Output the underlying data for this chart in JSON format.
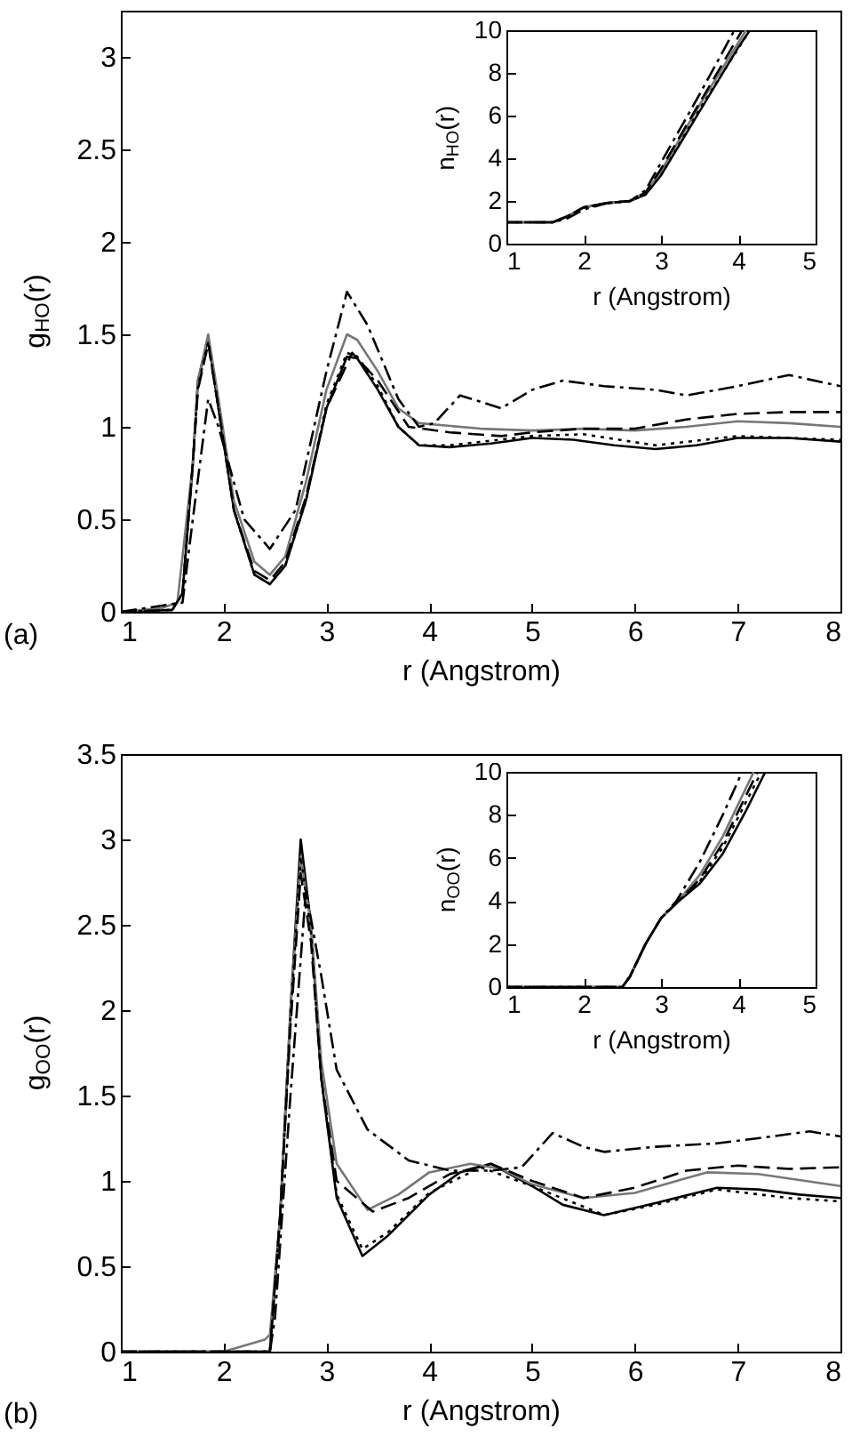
{
  "chart_data": [
    {
      "type": "line",
      "xlabel": "r (Angstrom)",
      "ylabel": "g$_{HO}$(r)",
      "annotations": [
        "(a)"
      ],
      "xlim": [
        1,
        8
      ],
      "ylim": [
        0,
        3.25
      ],
      "xticks": [
        1,
        2,
        3,
        4,
        5,
        6,
        7,
        8
      ],
      "yticks": [
        0,
        0.5,
        1,
        1.5,
        2,
        2.5,
        3
      ],
      "series": [
        {
          "color": "#000000",
          "line_style": "solid",
          "x": [
            1,
            1.5,
            1.6,
            1.7,
            1.75,
            1.85,
            1.95,
            2.1,
            2.3,
            2.45,
            2.6,
            2.8,
            3.0,
            3.2,
            3.3,
            3.5,
            3.7,
            3.9,
            4.2,
            4.6,
            5.0,
            5.4,
            5.8,
            6.2,
            6.6,
            7.0,
            7.5,
            8
          ],
          "values": [
            0,
            0.01,
            0.1,
            0.8,
            1.25,
            1.48,
            1.1,
            0.55,
            0.2,
            0.15,
            0.25,
            0.6,
            1.1,
            1.38,
            1.37,
            1.2,
            1.0,
            0.9,
            0.89,
            0.91,
            0.94,
            0.93,
            0.9,
            0.88,
            0.9,
            0.94,
            0.94,
            0.92
          ]
        },
        {
          "color": "#777777",
          "line_style": "solid",
          "x": [
            1,
            1.4,
            1.55,
            1.7,
            1.75,
            1.85,
            1.95,
            2.1,
            2.3,
            2.45,
            2.6,
            2.8,
            3.0,
            3.2,
            3.3,
            3.5,
            3.7,
            3.9,
            4.5,
            5.0,
            5.5,
            6.0,
            6.5,
            7.0,
            7.5,
            8
          ],
          "values": [
            0,
            0.02,
            0.05,
            0.8,
            1.25,
            1.5,
            1.15,
            0.6,
            0.27,
            0.2,
            0.3,
            0.7,
            1.2,
            1.5,
            1.47,
            1.3,
            1.1,
            1.02,
            0.99,
            0.98,
            0.99,
            0.98,
            1.0,
            1.03,
            1.02,
            1.0
          ]
        },
        {
          "color": "#000000",
          "line_style": "dashed",
          "x": [
            1,
            1.5,
            1.6,
            1.7,
            1.75,
            1.85,
            1.95,
            2.1,
            2.3,
            2.45,
            2.6,
            2.8,
            3.0,
            3.25,
            3.5,
            3.8,
            4.2,
            4.7,
            5.0,
            5.5,
            6.0,
            6.5,
            7.0,
            7.5,
            8
          ],
          "values": [
            0,
            0.01,
            0.1,
            0.8,
            1.2,
            1.45,
            1.1,
            0.55,
            0.22,
            0.17,
            0.27,
            0.62,
            1.1,
            1.4,
            1.25,
            1.0,
            0.97,
            0.95,
            0.97,
            0.99,
            0.99,
            1.04,
            1.07,
            1.08,
            1.08
          ]
        },
        {
          "color": "#000000",
          "line_style": "dotted",
          "x": [
            1,
            1.5,
            1.6,
            1.7,
            1.75,
            1.85,
            1.95,
            2.1,
            2.3,
            2.45,
            2.6,
            2.8,
            3.0,
            3.2,
            3.3,
            3.5,
            3.7,
            3.9,
            4.2,
            5.0,
            5.5,
            6.2,
            7.0,
            8
          ],
          "values": [
            0,
            0.01,
            0.1,
            0.8,
            1.22,
            1.46,
            1.1,
            0.55,
            0.2,
            0.15,
            0.25,
            0.6,
            1.12,
            1.4,
            1.38,
            1.22,
            1.0,
            0.9,
            0.9,
            0.95,
            0.96,
            0.9,
            0.95,
            0.93
          ]
        },
        {
          "color": "#000000",
          "line_style": "dashdot",
          "x": [
            1,
            1.6,
            1.7,
            1.85,
            1.95,
            2.2,
            2.45,
            2.7,
            3.0,
            3.2,
            3.4,
            3.7,
            3.9,
            4.05,
            4.3,
            4.7,
            5.0,
            5.3,
            5.7,
            6.2,
            6.5,
            7.0,
            7.5,
            8
          ],
          "values": [
            0,
            0.05,
            0.5,
            1.15,
            1.0,
            0.5,
            0.34,
            0.55,
            1.3,
            1.73,
            1.55,
            1.15,
            1.0,
            1.02,
            1.17,
            1.1,
            1.2,
            1.25,
            1.22,
            1.2,
            1.17,
            1.22,
            1.28,
            1.22
          ]
        }
      ]
    },
    {
      "type": "line",
      "xlabel": "r (Angstrom)",
      "ylabel": "n$_{HO}$(r)",
      "xlim": [
        1,
        5
      ],
      "ylim": [
        0,
        10
      ],
      "xticks": [
        1,
        2,
        3,
        4,
        5
      ],
      "yticks": [
        0,
        2,
        4,
        6,
        8,
        10
      ],
      "series": [
        {
          "color": "#000000",
          "line_style": "solid",
          "x": [
            1,
            1.6,
            1.8,
            2.0,
            2.3,
            2.6,
            2.8,
            3.0,
            3.5,
            4.0,
            4.15
          ],
          "values": [
            1,
            1,
            1.3,
            1.7,
            1.9,
            2.0,
            2.3,
            3.2,
            6.2,
            9.2,
            10
          ]
        },
        {
          "color": "#777777",
          "line_style": "solid",
          "x": [
            1,
            1.6,
            1.8,
            2.0,
            2.3,
            2.6,
            2.8,
            3.0,
            3.5,
            4.1
          ],
          "values": [
            1,
            1,
            1.3,
            1.7,
            1.9,
            2.0,
            2.4,
            3.4,
            6.5,
            10
          ]
        },
        {
          "color": "#000000",
          "line_style": "dashed",
          "x": [
            1,
            1.6,
            1.8,
            2.0,
            2.3,
            2.6,
            2.8,
            3.0,
            3.5,
            4.05
          ],
          "values": [
            1,
            1,
            1.3,
            1.7,
            1.9,
            2.0,
            2.4,
            3.5,
            6.6,
            10
          ]
        },
        {
          "color": "#000000",
          "line_style": "dotted",
          "x": [
            1,
            1.6,
            1.8,
            2.0,
            2.3,
            2.6,
            2.8,
            3.0,
            3.5,
            4.15
          ],
          "values": [
            1,
            1,
            1.3,
            1.7,
            1.9,
            2.0,
            2.3,
            3.2,
            6.3,
            10
          ]
        },
        {
          "color": "#000000",
          "line_style": "dashdot",
          "x": [
            1,
            1.6,
            1.8,
            2.0,
            2.3,
            2.6,
            2.8,
            3.0,
            3.5,
            3.95
          ],
          "values": [
            1,
            1,
            1.2,
            1.6,
            1.9,
            2.0,
            2.5,
            3.8,
            7.0,
            10
          ]
        }
      ]
    },
    {
      "type": "line",
      "xlabel": "r (Angstrom)",
      "ylabel": "g$_{OO}$(r)",
      "annotations": [
        "(b)"
      ],
      "xlim": [
        1,
        8
      ],
      "ylim": [
        0,
        3.5
      ],
      "xticks": [
        1,
        2,
        3,
        4,
        5,
        6,
        7,
        8
      ],
      "yticks": [
        0,
        0.5,
        1,
        1.5,
        2,
        2.5,
        3,
        3.5
      ],
      "series": [
        {
          "color": "#000000",
          "line_style": "solid",
          "x": [
            1,
            2.45,
            2.55,
            2.65,
            2.75,
            2.85,
            2.95,
            3.1,
            3.35,
            3.6,
            4.0,
            4.3,
            4.6,
            5.0,
            5.3,
            5.7,
            6.2,
            6.8,
            7.2,
            7.6,
            8
          ],
          "values": [
            0,
            0,
            0.8,
            2.0,
            3.0,
            2.5,
            1.6,
            0.9,
            0.56,
            0.68,
            0.92,
            1.05,
            1.1,
            0.97,
            0.86,
            0.8,
            0.87,
            0.96,
            0.95,
            0.92,
            0.9
          ]
        },
        {
          "color": "#777777",
          "line_style": "solid",
          "x": [
            1,
            2.0,
            2.4,
            2.45,
            2.55,
            2.65,
            2.75,
            2.85,
            2.95,
            3.1,
            3.4,
            3.7,
            4.0,
            4.4,
            4.7,
            5.0,
            5.5,
            6.0,
            6.7,
            7.2,
            8
          ],
          "values": [
            0,
            0,
            0.07,
            0.1,
            0.8,
            2.0,
            2.9,
            2.5,
            1.7,
            1.1,
            0.83,
            0.92,
            1.05,
            1.1,
            1.07,
            0.98,
            0.9,
            0.93,
            1.05,
            1.04,
            0.97
          ]
        },
        {
          "color": "#000000",
          "line_style": "dashed",
          "x": [
            1,
            2.45,
            2.55,
            2.65,
            2.75,
            2.85,
            2.95,
            3.1,
            3.45,
            3.8,
            4.2,
            4.6,
            5.0,
            5.5,
            6.0,
            6.5,
            7.0,
            7.5,
            8
          ],
          "values": [
            0,
            0,
            0.8,
            1.9,
            2.8,
            2.4,
            1.6,
            1.0,
            0.82,
            0.9,
            1.04,
            1.1,
            1.0,
            0.9,
            0.96,
            1.06,
            1.09,
            1.07,
            1.08
          ]
        },
        {
          "color": "#000000",
          "line_style": "dotted",
          "x": [
            1,
            2.45,
            2.55,
            2.65,
            2.75,
            2.85,
            2.95,
            3.1,
            3.35,
            3.6,
            4.0,
            4.5,
            5.0,
            5.7,
            6.2,
            6.8,
            7.5,
            8
          ],
          "values": [
            0,
            0,
            0.8,
            1.95,
            2.9,
            2.45,
            1.6,
            0.92,
            0.6,
            0.7,
            0.93,
            1.08,
            0.97,
            0.8,
            0.86,
            0.95,
            0.9,
            0.88
          ]
        },
        {
          "color": "#000000",
          "line_style": "dashdot",
          "x": [
            1,
            2.45,
            2.5,
            2.65,
            2.8,
            2.95,
            3.1,
            3.4,
            3.8,
            4.2,
            4.6,
            4.9,
            5.2,
            5.5,
            5.7,
            6.2,
            6.8,
            7.2,
            7.7,
            8
          ],
          "values": [
            0,
            0,
            0.2,
            1.5,
            2.7,
            2.2,
            1.65,
            1.3,
            1.12,
            1.06,
            1.06,
            1.08,
            1.28,
            1.2,
            1.17,
            1.2,
            1.22,
            1.25,
            1.29,
            1.26
          ]
        }
      ]
    },
    {
      "type": "line",
      "xlabel": "r (Angstrom)",
      "ylabel": "n$_{OO}$(r)",
      "xlim": [
        1,
        5
      ],
      "ylim": [
        0,
        10
      ],
      "xticks": [
        1,
        2,
        3,
        4,
        5
      ],
      "yticks": [
        0,
        2,
        4,
        6,
        8,
        10
      ],
      "series": [
        {
          "color": "#000000",
          "line_style": "solid",
          "x": [
            1,
            2.5,
            2.6,
            2.8,
            3.0,
            3.2,
            3.5,
            3.8,
            4.1,
            4.35
          ],
          "values": [
            0,
            0,
            0.5,
            2.0,
            3.2,
            3.9,
            4.8,
            6.2,
            8.2,
            10
          ]
        },
        {
          "color": "#777777",
          "line_style": "solid",
          "x": [
            1,
            2.5,
            2.6,
            2.8,
            3.0,
            3.2,
            3.5,
            3.8,
            4.2
          ],
          "values": [
            0,
            0,
            0.5,
            2.0,
            3.2,
            3.9,
            5.2,
            7.0,
            10
          ]
        },
        {
          "color": "#000000",
          "line_style": "dashed",
          "x": [
            1,
            2.5,
            2.6,
            2.8,
            3.0,
            3.2,
            3.5,
            3.8,
            4.25
          ],
          "values": [
            0,
            0,
            0.5,
            2.0,
            3.2,
            3.9,
            5.0,
            6.7,
            10
          ]
        },
        {
          "color": "#000000",
          "line_style": "dotted",
          "x": [
            1,
            2.5,
            2.6,
            2.8,
            3.0,
            3.2,
            3.5,
            3.8,
            4.3
          ],
          "values": [
            0,
            0,
            0.5,
            2.0,
            3.2,
            3.9,
            4.9,
            6.5,
            10
          ]
        },
        {
          "color": "#000000",
          "line_style": "dashdot",
          "x": [
            1,
            2.5,
            2.6,
            2.8,
            3.0,
            3.2,
            3.5,
            3.8,
            4.05
          ],
          "values": [
            0,
            0,
            0.5,
            2.0,
            3.2,
            4.0,
            5.8,
            8.0,
            10
          ]
        }
      ]
    }
  ]
}
